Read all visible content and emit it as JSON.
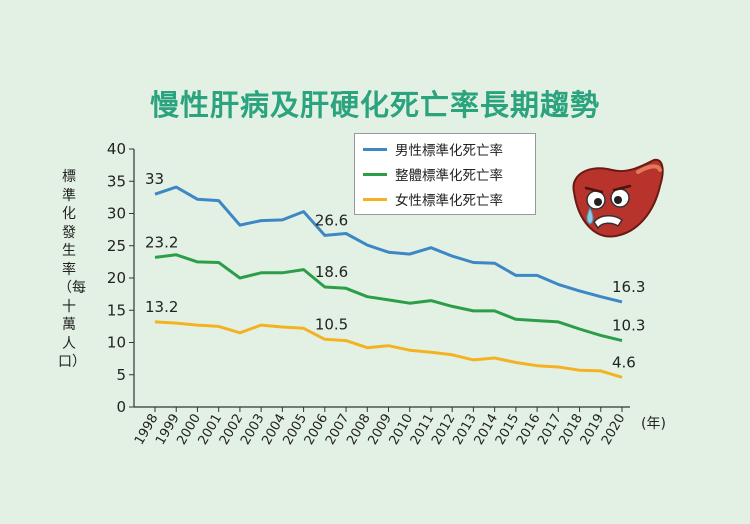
{
  "chart_data": {
    "type": "line",
    "title": "慢性肝病及肝硬化死亡率長期趨勢",
    "ylabel": "標準化發生率（每十萬人口）",
    "xlabel": "(年)",
    "x": [
      "1998",
      "1999",
      "2000",
      "2001",
      "2002",
      "2003",
      "2004",
      "2005",
      "2006",
      "2007",
      "2008",
      "2009",
      "2010",
      "2011",
      "2012",
      "2013",
      "2014",
      "2015",
      "2016",
      "2017",
      "2018",
      "2019",
      "2020"
    ],
    "ylim": [
      0,
      40
    ],
    "yticks": [
      0,
      5,
      10,
      15,
      20,
      25,
      30,
      35,
      40
    ],
    "grid": false,
    "legend_position": "top-center",
    "series": [
      {
        "name": "男性標準化死亡率",
        "color": "#3d87c5",
        "values": [
          33,
          34.1,
          32.2,
          32,
          28.2,
          28.9,
          29,
          30.3,
          26.6,
          26.9,
          25.1,
          24,
          23.7,
          24.7,
          23.4,
          22.4,
          22.3,
          20.4,
          20.4,
          19,
          18,
          17.1,
          16.3
        ]
      },
      {
        "name": "整體標準化死亡率",
        "color": "#2c9e48",
        "values": [
          23.2,
          23.6,
          22.5,
          22.4,
          20,
          20.8,
          20.8,
          21.3,
          18.6,
          18.4,
          17.1,
          16.6,
          16.1,
          16.5,
          15.6,
          14.9,
          14.9,
          13.6,
          13.4,
          13.2,
          12.1,
          11.1,
          10.3
        ]
      },
      {
        "name": "女性標準化死亡率",
        "color": "#f4b223",
        "values": [
          13.2,
          13,
          12.7,
          12.5,
          11.5,
          12.7,
          12.4,
          12.2,
          10.5,
          10.3,
          9.2,
          9.5,
          8.8,
          8.5,
          8.1,
          7.3,
          7.6,
          6.9,
          6.4,
          6.2,
          5.7,
          5.6,
          4.6
        ]
      }
    ],
    "annotations": [
      {
        "series": 0,
        "index": 0,
        "text": "33"
      },
      {
        "series": 0,
        "index": 8,
        "text": "26.6"
      },
      {
        "series": 0,
        "index": 22,
        "text": "16.3"
      },
      {
        "series": 1,
        "index": 0,
        "text": "23.2"
      },
      {
        "series": 1,
        "index": 8,
        "text": "18.6"
      },
      {
        "series": 1,
        "index": 22,
        "text": "10.3"
      },
      {
        "series": 2,
        "index": 0,
        "text": "13.2"
      },
      {
        "series": 2,
        "index": 8,
        "text": "10.5"
      },
      {
        "series": 2,
        "index": 22,
        "text": "4.6"
      }
    ]
  },
  "decoration": {
    "icon": "sad-liver-icon"
  }
}
